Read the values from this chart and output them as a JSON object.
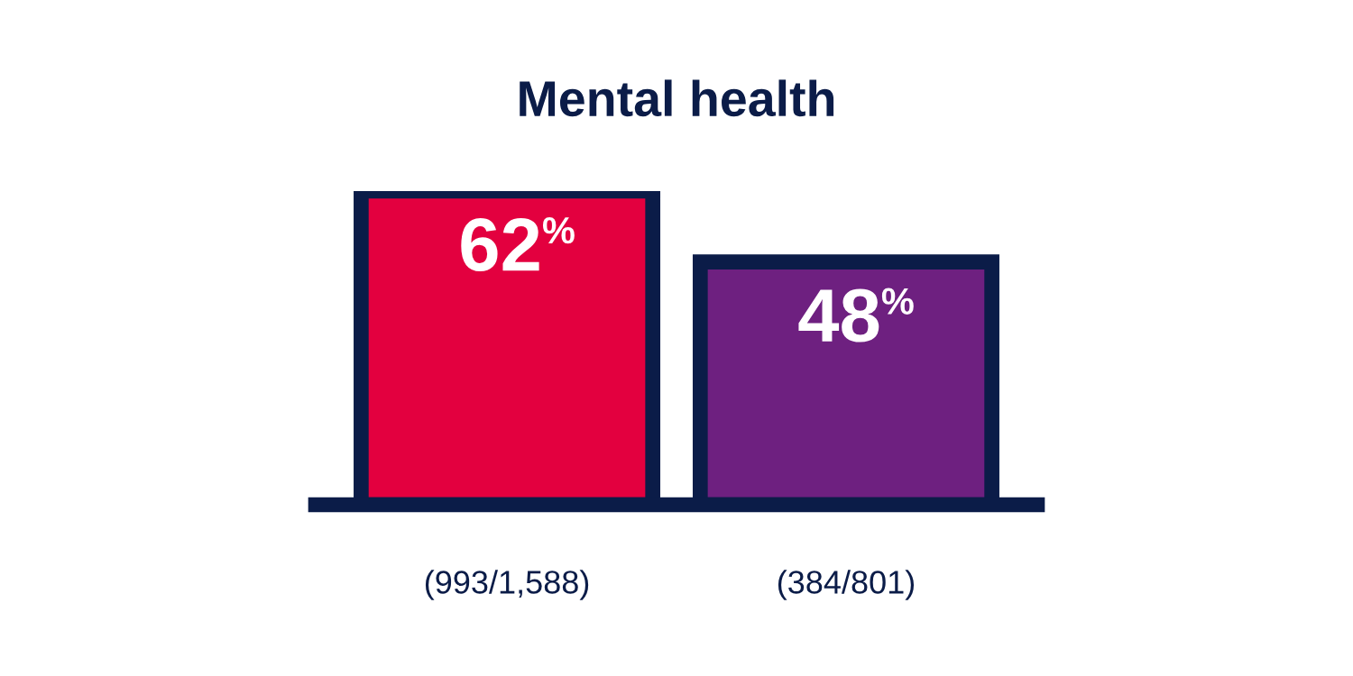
{
  "chart_data": {
    "type": "bar",
    "title": "Mental health",
    "categories": [
      "(993/1,588)",
      "(384/801)"
    ],
    "values": [
      62,
      48
    ],
    "colors": [
      "#e3003f",
      "#6e2080"
    ],
    "value_labels": [
      "62$^{%}$",
      "48$^{%}$"
    ]
  }
}
